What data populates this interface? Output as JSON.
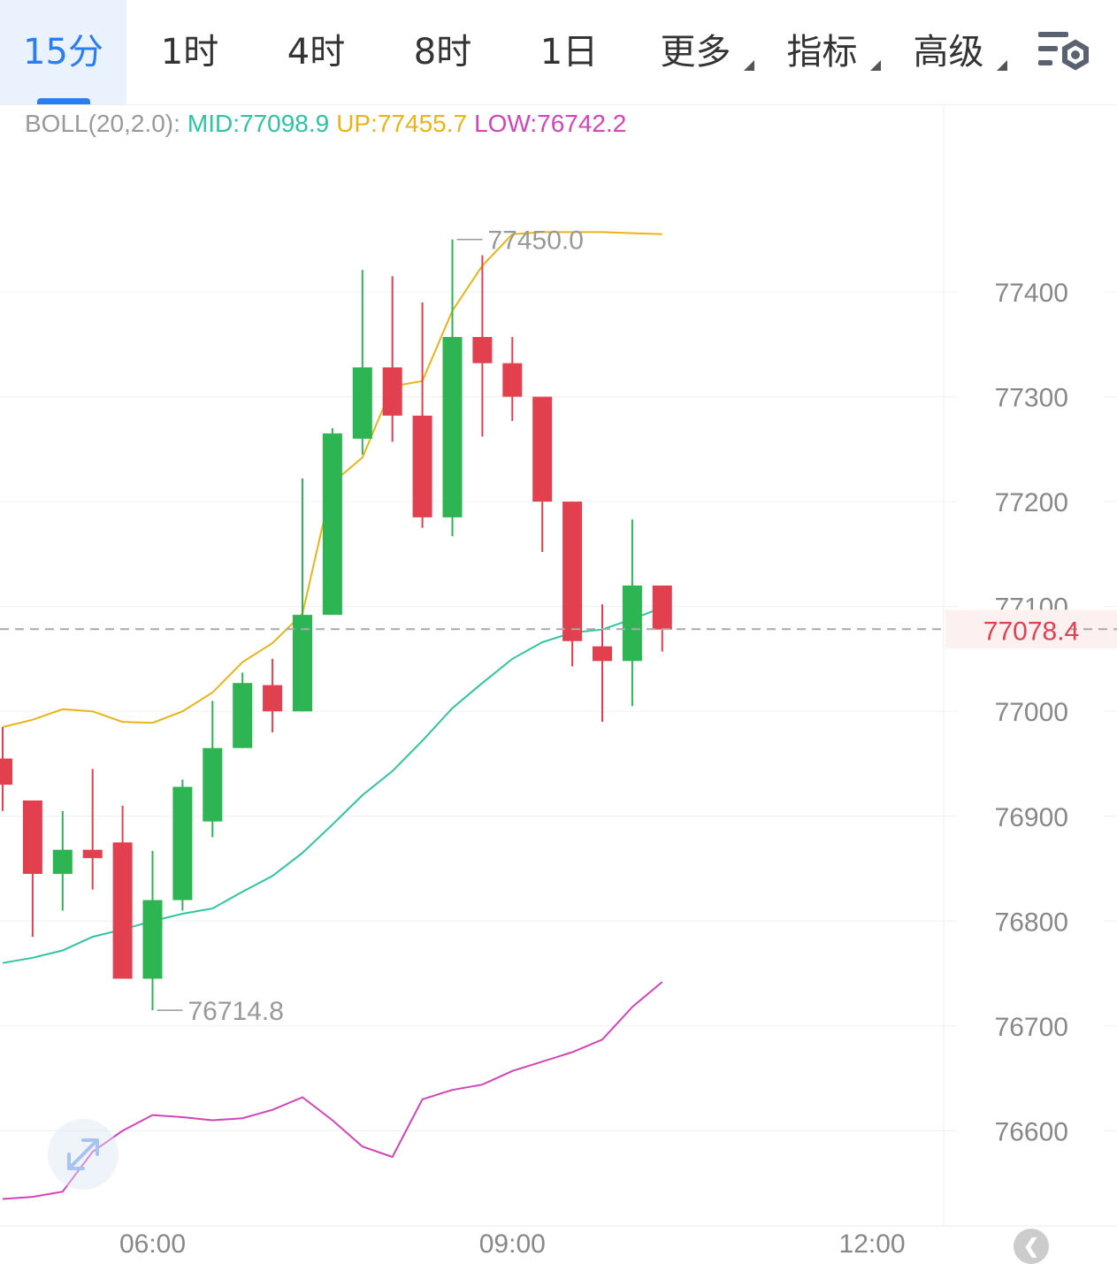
{
  "tabs": [
    {
      "label": "15分",
      "active": true,
      "has_caret": false
    },
    {
      "label": "1时",
      "active": false,
      "has_caret": false
    },
    {
      "label": "4时",
      "active": false,
      "has_caret": false
    },
    {
      "label": "8时",
      "active": false,
      "has_caret": false
    },
    {
      "label": "1日",
      "active": false,
      "has_caret": false
    },
    {
      "label": "更多",
      "active": false,
      "has_caret": true
    },
    {
      "label": "指标",
      "active": false,
      "has_caret": true
    },
    {
      "label": "高级",
      "active": false,
      "has_caret": true
    }
  ],
  "settings_icon": "chart-settings-icon",
  "legend": {
    "prefix": "BOLL(20,2.0):",
    "mid": "MID:77098.9",
    "up": "UP:77455.7",
    "low": "LOW:76742.2"
  },
  "colors": {
    "up_candle": "#2db453",
    "down_candle": "#e2404f",
    "mid_line": "#2fc4a1",
    "upper_line": "#e9b418",
    "lower_line": "#d244b9",
    "price_label": "#e2404f",
    "axis_text": "#888888",
    "active_tab": "#2a7ef0"
  },
  "chart_data": {
    "type": "candlestick",
    "ylim": [
      76540,
      77600
    ],
    "y_ticks": [
      76600,
      76700,
      76800,
      76900,
      77000,
      77100,
      77200,
      77300,
      77400
    ],
    "y_tick_labels": [
      "76600",
      "76700",
      "76800",
      "76900",
      "77000",
      "77100",
      "77200",
      "77300",
      "77400"
    ],
    "x_ticks": [
      {
        "index": 5,
        "label": "06:00"
      },
      {
        "index": 17,
        "label": "09:00"
      },
      {
        "index": 29,
        "label": "12:00"
      }
    ],
    "candles": [
      {
        "o": 76955,
        "h": 76985,
        "l": 76905,
        "c": 76930
      },
      {
        "o": 76915,
        "h": 76915,
        "l": 76785,
        "c": 76845
      },
      {
        "o": 76845,
        "h": 76905,
        "l": 76810,
        "c": 76868
      },
      {
        "o": 76868,
        "h": 76945,
        "l": 76830,
        "c": 76860
      },
      {
        "o": 76875,
        "h": 76910,
        "l": 76745,
        "c": 76745
      },
      {
        "o": 76745,
        "h": 76867,
        "l": 76715,
        "c": 76820
      },
      {
        "o": 76820,
        "h": 76935,
        "l": 76810,
        "c": 76928
      },
      {
        "o": 76895,
        "h": 77010,
        "l": 76880,
        "c": 76965
      },
      {
        "o": 76965,
        "h": 77037,
        "l": 76965,
        "c": 77027
      },
      {
        "o": 77025,
        "h": 77050,
        "l": 76980,
        "c": 77000
      },
      {
        "o": 77000,
        "h": 77222,
        "l": 77000,
        "c": 77092
      },
      {
        "o": 77092,
        "h": 77270,
        "l": 77092,
        "c": 77265
      },
      {
        "o": 77260,
        "h": 77421,
        "l": 77245,
        "c": 77328
      },
      {
        "o": 77328,
        "h": 77415,
        "l": 77257,
        "c": 77282
      },
      {
        "o": 77282,
        "h": 77390,
        "l": 77175,
        "c": 77185
      },
      {
        "o": 77185,
        "h": 77450,
        "l": 77167,
        "c": 77357
      },
      {
        "o": 77357,
        "h": 77435,
        "l": 77262,
        "c": 77332
      },
      {
        "o": 77332,
        "h": 77357,
        "l": 77277,
        "c": 77300
      },
      {
        "o": 77300,
        "h": 77300,
        "l": 77152,
        "c": 77200
      },
      {
        "o": 77200,
        "h": 77200,
        "l": 77043,
        "c": 77067
      },
      {
        "o": 77062,
        "h": 77102,
        "l": 76990,
        "c": 77048
      },
      {
        "o": 77048,
        "h": 77183,
        "l": 77005,
        "c": 77120
      },
      {
        "o": 77120,
        "h": 77120,
        "l": 77057,
        "c": 77078
      }
    ],
    "boll_up": [
      76985,
      76992,
      77002,
      77000,
      76990,
      76989,
      77000,
      77018,
      77047,
      77065,
      77093,
      77218,
      77242,
      77310,
      77315,
      77382,
      77425,
      77455,
      77457,
      77457,
      77457,
      77456,
      77455
    ],
    "boll_mid": [
      76760,
      76765,
      76772,
      76785,
      76792,
      76800,
      76807,
      76812,
      76828,
      76843,
      76865,
      76892,
      76920,
      76943,
      76972,
      77003,
      77027,
      77050,
      77066,
      77075,
      77078,
      77088,
      77099
    ],
    "boll_low": [
      76535,
      76537,
      76542,
      76580,
      76600,
      76615,
      76613,
      76610,
      76612,
      76620,
      76632,
      76610,
      76585,
      76575,
      76630,
      76639,
      76644,
      76657,
      76666,
      76675,
      76687,
      76718,
      76742
    ],
    "high_marker": "77450.0",
    "low_marker": "76714.8",
    "current_price": 77078.4,
    "current_price_label": "77078.4"
  }
}
